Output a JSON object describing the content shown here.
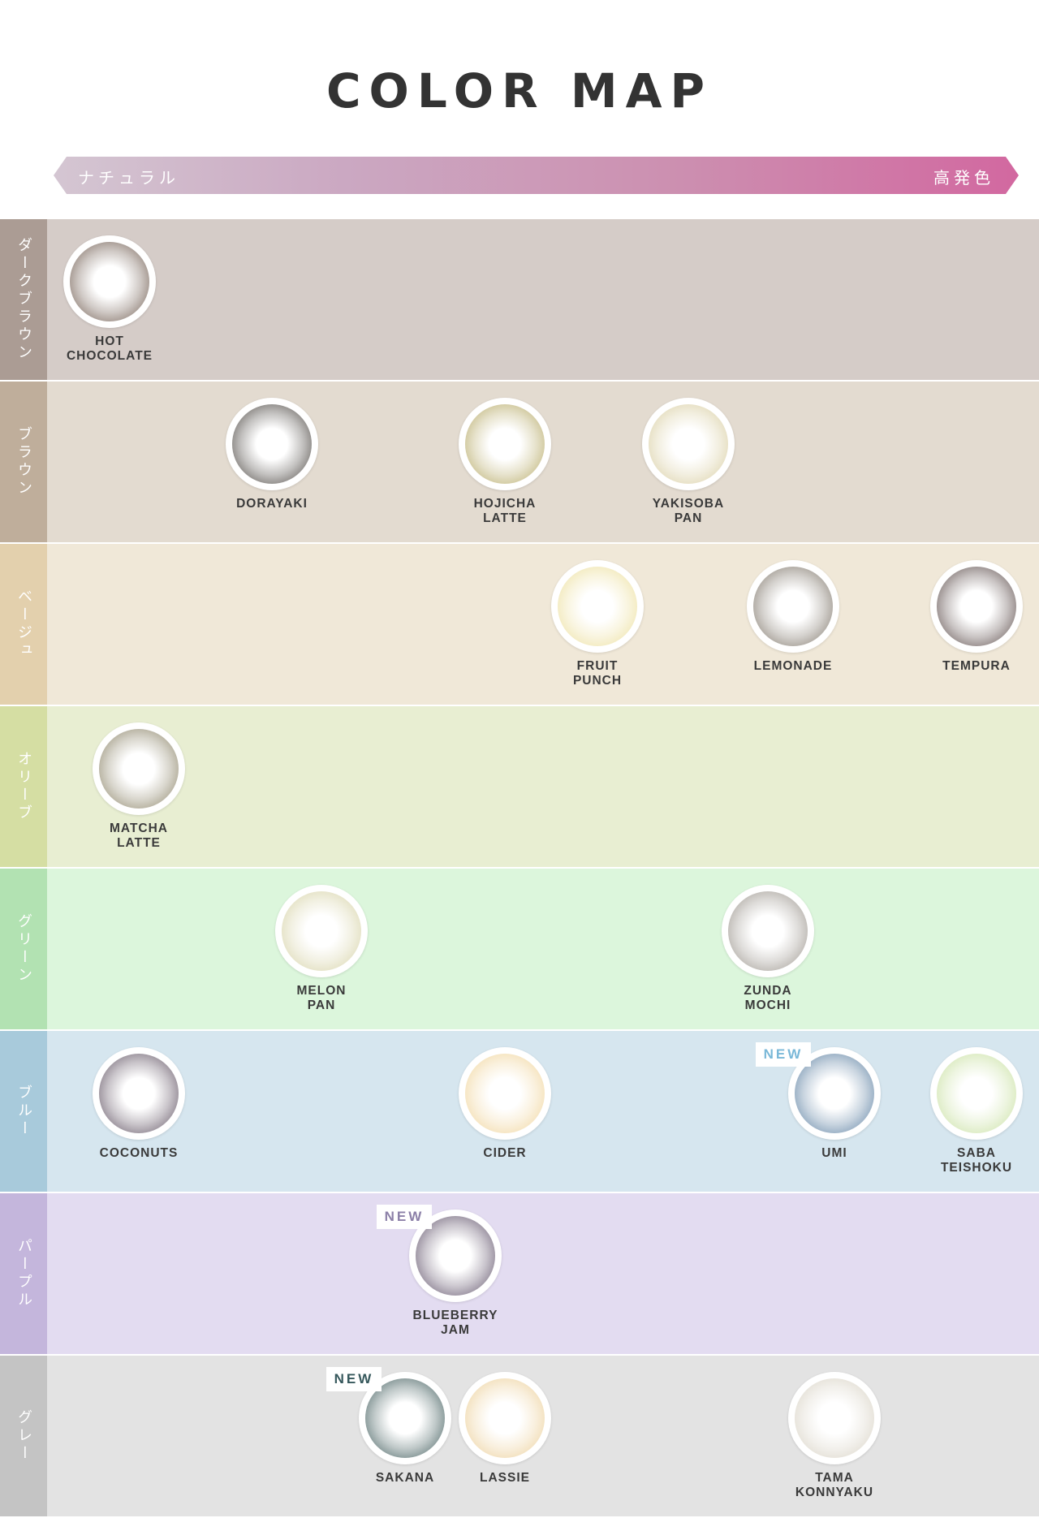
{
  "title": "COLOR MAP",
  "scale": {
    "left": "ナチュラル",
    "right": "高発色"
  },
  "new_label": "NEW",
  "rows": [
    {
      "label": "ダークブラウン",
      "bg": "#d5ccc8",
      "tab": "#ab9c94",
      "items": [
        {
          "name": "HOT\nCHOCOLATE",
          "color": "#6e5a4e"
        }
      ]
    },
    {
      "label": "ブラウン",
      "bg": "#e3dbd0",
      "tab": "#bfae9b",
      "items": [
        {
          "name": "DORAYAKI",
          "color": "#4a4540"
        },
        {
          "name": "HOJICHA\nLATTE",
          "color": "#b5a864"
        },
        {
          "name": "YAKISOBA\nPAN",
          "color": "#d8cda0"
        }
      ]
    },
    {
      "label": "ベージュ",
      "bg": "#f0e8d8",
      "tab": "#e3d0ad",
      "items": [
        {
          "name": "FRUIT\nPUNCH",
          "color": "#ecdf9c"
        },
        {
          "name": "LEMONADE",
          "color": "#7d7468"
        },
        {
          "name": "TEMPURA",
          "color": "#5a4a48"
        }
      ]
    },
    {
      "label": "オリーブ",
      "bg": "#e8eed2",
      "tab": "#d5dea3",
      "items": [
        {
          "name": "MATCHA\nLATTE",
          "color": "#8a8266"
        }
      ]
    },
    {
      "label": "グリーン",
      "bg": "#dcf6dc",
      "tab": "#b2e2b2",
      "items": [
        {
          "name": "MELON\nPAN",
          "color": "#d6d2a6"
        },
        {
          "name": "ZUNDA\nMOCHI",
          "color": "#9a948c"
        }
      ]
    },
    {
      "label": "ブルー",
      "bg": "#d6e6ef",
      "tab": "#a8cadb",
      "items": [
        {
          "name": "COCONUTS",
          "color": "#5e5060"
        },
        {
          "name": "CIDER",
          "color": "#f0d49a"
        },
        {
          "name": "UMI",
          "color": "#5a7ea0",
          "new": true,
          "new_color": "#7ab8d8"
        },
        {
          "name": "SABA\nTEISHOKU",
          "color": "#c8e0a0"
        }
      ]
    },
    {
      "label": "パープル",
      "bg": "#e3dcf1",
      "tab": "#c4b6dc",
      "items": [
        {
          "name": "BLUEBERRY\nJAM",
          "color": "#5e5068",
          "new": true,
          "new_color": "#8c80a8"
        }
      ]
    },
    {
      "label": "グレー",
      "bg": "#e3e3e3",
      "tab": "#c4c4c4",
      "items": [
        {
          "name": "SAKANA",
          "color": "#3e5a5a",
          "new": true,
          "new_color": "#36585c"
        },
        {
          "name": "LASSIE",
          "color": "#eccf98"
        },
        {
          "name": "TAMA\nKONNYAKU",
          "color": "#d8d2c4"
        }
      ]
    }
  ]
}
